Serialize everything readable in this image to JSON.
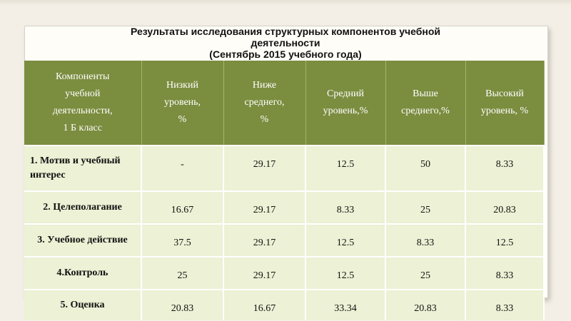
{
  "title": {
    "line1": "Результаты исследования структурных компонентов учебной",
    "line2": "деятельности",
    "line3": "(Сентябрь 2015 учебного года)"
  },
  "table": {
    "headers": [
      [
        "Компоненты",
        "учебной",
        "деятельности,",
        "1 Б класс"
      ],
      [
        "Низкий",
        "уровень,",
        "%"
      ],
      [
        "Ниже",
        "среднего,",
        "%"
      ],
      [
        "Средний",
        "уровень,%"
      ],
      [
        "Выше",
        "среднего,%"
      ],
      [
        "Высокий",
        "уровень, %"
      ]
    ],
    "rows": [
      {
        "label": "1. Мотив и учебный интерес",
        "values": [
          "-",
          "29.17",
          "12.5",
          "50",
          "8.33"
        ]
      },
      {
        "label": "2. Целеполагание",
        "values": [
          "16.67",
          "29.17",
          "8.33",
          "25",
          "20.83"
        ]
      },
      {
        "label": "3. Учебное действие",
        "values": [
          "37.5",
          "29.17",
          "12.5",
          "8.33",
          "12.5"
        ]
      },
      {
        "label": "4.Контроль",
        "values": [
          "25",
          "29.17",
          "12.5",
          "25",
          "8.33"
        ]
      },
      {
        "label": "5. Оценка",
        "values": [
          "20.83",
          "16.67",
          "33.34",
          "20.83",
          "8.33"
        ]
      }
    ]
  },
  "colors": {
    "header_bg": "#7b8d3f",
    "cell_bg": "#edf1d5"
  }
}
